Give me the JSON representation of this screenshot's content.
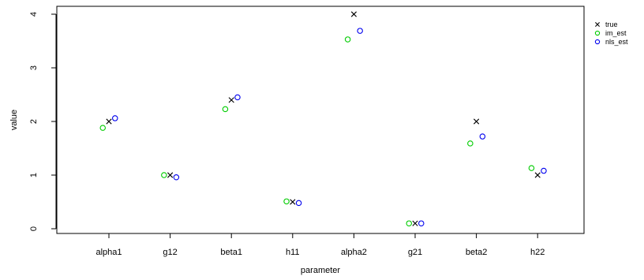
{
  "chart_data": {
    "type": "scatter",
    "title": "",
    "xlabel": "parameter",
    "ylabel": "value",
    "categories": [
      "alpha1",
      "g12",
      "beta1",
      "h11",
      "alpha2",
      "g21",
      "beta2",
      "h22"
    ],
    "ylim": [
      -0.15,
      4.15
    ],
    "yticks": [
      0,
      1,
      2,
      3,
      4
    ],
    "grid": false,
    "legend_position": "top-right",
    "series": [
      {
        "name": "true",
        "marker": "x",
        "color": "#000000",
        "offset": 0.0,
        "values": [
          2.0,
          1.0,
          2.4,
          0.5,
          4.0,
          0.1,
          2.0,
          1.0
        ]
      },
      {
        "name": "im_est",
        "marker": "circle",
        "color": "#00cc00",
        "offset": -0.1,
        "values": [
          1.88,
          1.0,
          2.23,
          0.51,
          3.53,
          0.1,
          1.59,
          1.13
        ]
      },
      {
        "name": "nls_est",
        "marker": "circle",
        "color": "#0000ee",
        "offset": 0.1,
        "values": [
          2.06,
          0.96,
          2.45,
          0.48,
          3.69,
          0.1,
          1.72,
          1.08
        ]
      }
    ]
  }
}
